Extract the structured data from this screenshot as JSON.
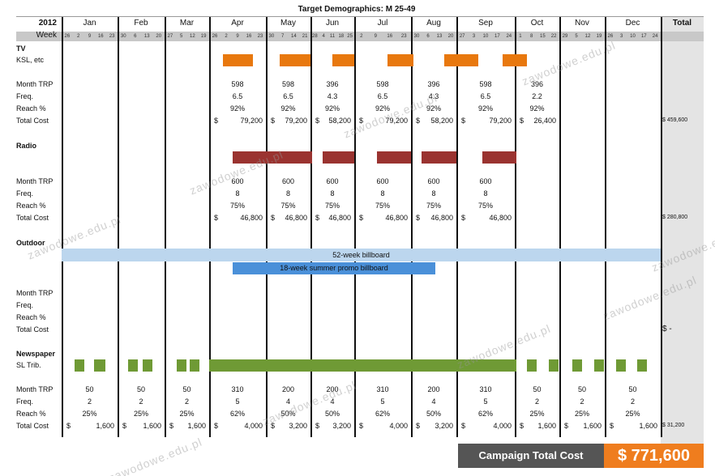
{
  "header": {
    "title": "Target Demographics: M 25-49",
    "year": "2012",
    "week_label": "Week",
    "total_label": "Total"
  },
  "months": [
    {
      "name": "Jan",
      "weeks": [
        26,
        2,
        9,
        16,
        23
      ]
    },
    {
      "name": "Feb",
      "weeks": [
        30,
        6,
        13,
        20
      ]
    },
    {
      "name": "Mar",
      "weeks": [
        27,
        5,
        12,
        19
      ]
    },
    {
      "name": "Apr",
      "weeks": [
        26,
        2,
        9,
        16,
        23
      ]
    },
    {
      "name": "May",
      "weeks": [
        30,
        7,
        14,
        21
      ]
    },
    {
      "name": "Jun",
      "weeks": [
        28,
        4,
        11,
        18,
        25
      ]
    },
    {
      "name": "Jul",
      "weeks": [
        2,
        9,
        16,
        23
      ]
    },
    {
      "name": "Aug",
      "weeks": [
        30,
        6,
        13,
        20
      ]
    },
    {
      "name": "Sep",
      "weeks": [
        27,
        3,
        10,
        17,
        24
      ]
    },
    {
      "name": "Oct",
      "weeks": [
        1,
        8,
        15,
        22
      ]
    },
    {
      "name": "Nov",
      "weeks": [
        29,
        5,
        12,
        19
      ]
    },
    {
      "name": "Dec",
      "weeks": [
        26,
        3,
        10,
        17,
        24
      ]
    }
  ],
  "currency": "$",
  "sections": [
    {
      "name": "TV",
      "vehicle": "KSL, etc",
      "labels": [
        "Month TRP",
        "Freq.",
        "Reach %",
        "Total Cost"
      ],
      "trp": [
        null,
        null,
        null,
        598,
        598,
        396,
        598,
        396,
        598,
        396,
        null,
        null
      ],
      "freq": [
        null,
        null,
        null,
        6.5,
        6.5,
        4.3,
        6.5,
        4.3,
        6.5,
        2.2,
        null,
        null
      ],
      "reach": [
        null,
        null,
        null,
        "92%",
        "92%",
        "92%",
        "92%",
        "92%",
        "92%",
        "92%",
        null,
        null
      ],
      "cost": [
        null,
        null,
        null,
        "79,200",
        "79,200",
        "58,200",
        "79,200",
        "58,200",
        "79,200",
        "26,400",
        null,
        null
      ],
      "total": "$ 459,600"
    },
    {
      "name": "Radio",
      "labels": [
        "Month TRP",
        "Freq.",
        "Reach %",
        "Total Cost"
      ],
      "trp": [
        null,
        null,
        null,
        600,
        600,
        600,
        600,
        600,
        600,
        null,
        null,
        null
      ],
      "freq": [
        null,
        null,
        null,
        8,
        8,
        8,
        8,
        8,
        8,
        null,
        null,
        null
      ],
      "reach": [
        null,
        null,
        null,
        "75%",
        "75%",
        "75%",
        "75%",
        "75%",
        "75%",
        null,
        null,
        null
      ],
      "cost": [
        null,
        null,
        null,
        "46,800",
        "46,800",
        "46,800",
        "46,800",
        "46,800",
        "46,800",
        null,
        null,
        null
      ],
      "total": "$ 280,800"
    },
    {
      "name": "Outdoor",
      "bars": [
        "52-week billboard",
        "18-week summer promo billboard"
      ],
      "labels": [
        "Month TRP",
        "Freq.",
        "Reach %",
        "Total Cost"
      ],
      "total": "$  -"
    },
    {
      "name": "Newspaper",
      "vehicle": "SL Trib.",
      "labels": [
        "Month TRP",
        "Freq.",
        "Reach %",
        "Total Cost"
      ],
      "trp": [
        50,
        50,
        50,
        310,
        200,
        200,
        310,
        200,
        310,
        50,
        50,
        50
      ],
      "freq": [
        2,
        2,
        2,
        5,
        4,
        4,
        5,
        4,
        5,
        2,
        2,
        2
      ],
      "reach": [
        "25%",
        "25%",
        "25%",
        "62%",
        "50%",
        "50%",
        "62%",
        "50%",
        "62%",
        "25%",
        "25%",
        "25%"
      ],
      "cost": [
        "1,600",
        "1,600",
        "1,600",
        "4,000",
        "3,200",
        "3,200",
        "4,000",
        "3,200",
        "4,000",
        "1,600",
        "1,600",
        "1,600"
      ],
      "total": "$ 31,200"
    }
  ],
  "footer": {
    "label": "Campaign Total Cost",
    "value": "$ 771,600"
  },
  "watermark": "zawodowe.edu.pl"
}
